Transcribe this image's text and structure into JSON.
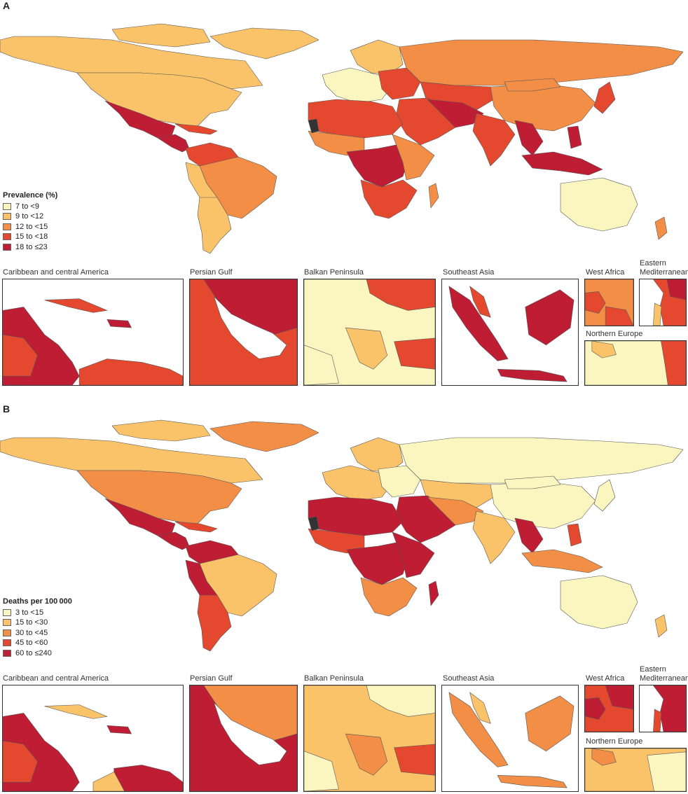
{
  "colors": {
    "ocean": "#ffffff",
    "border": "#555555",
    "nodata": "#333333"
  },
  "panel_a": {
    "letter": "A",
    "legend": {
      "title": "Prevalence (%)",
      "items": [
        {
          "label": "7 to <9",
          "color": "#fbf6c0"
        },
        {
          "label": "9 to <12",
          "color": "#fac369"
        },
        {
          "label": "12 to <15",
          "color": "#f28e46"
        },
        {
          "label": "15 to <18",
          "color": "#e4492f"
        },
        {
          "label": "18 to ≤23",
          "color": "#bf1d34"
        }
      ]
    }
  },
  "panel_b": {
    "letter": "B",
    "legend": {
      "title": "Deaths per 100 000",
      "items": [
        {
          "label": "3 to <15",
          "color": "#fbf6c0"
        },
        {
          "label": "15 to <30",
          "color": "#fac369"
        },
        {
          "label": "30 to <45",
          "color": "#f28e46"
        },
        {
          "label": "45 to <60",
          "color": "#e4492f"
        },
        {
          "label": "60 to ≤240",
          "color": "#bf1d34"
        }
      ]
    }
  },
  "insets": {
    "caribbean": "Caribbean and central America",
    "persian_gulf": "Persian Gulf",
    "balkan": "Balkan Peninsula",
    "southeast_asia": "Southeast Asia",
    "west_africa": "West Africa",
    "east_med_line1": "Eastern",
    "east_med_line2": "Mediterranean",
    "northern_europe": "Northern Europe"
  }
}
